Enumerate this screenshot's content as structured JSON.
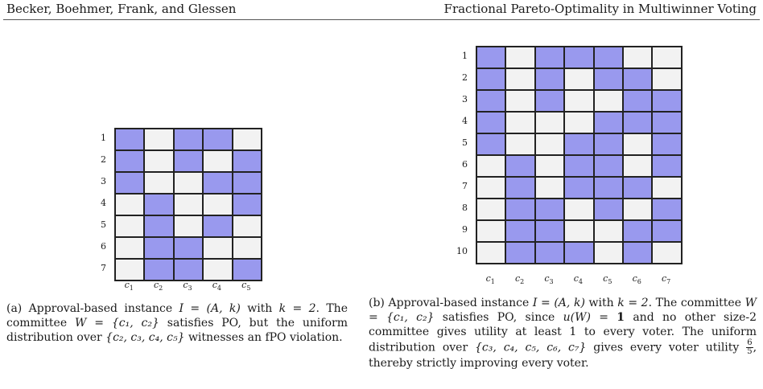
{
  "header": {
    "left": "Becker, Boehmer, Frank, and Glessen",
    "right": "Fractional Pareto-Optimality in Multiwinner Voting"
  },
  "figure_a": {
    "rows": [
      "1",
      "2",
      "3",
      "4",
      "5",
      "6",
      "7"
    ],
    "cols": [
      "c1",
      "c2",
      "c3",
      "c4",
      "c5"
    ],
    "matrix": [
      [
        1,
        0,
        1,
        1,
        0
      ],
      [
        1,
        0,
        1,
        0,
        1
      ],
      [
        1,
        0,
        0,
        1,
        1
      ],
      [
        0,
        1,
        0,
        0,
        1
      ],
      [
        0,
        1,
        0,
        1,
        0
      ],
      [
        0,
        1,
        1,
        0,
        0
      ],
      [
        0,
        1,
        1,
        0,
        1
      ]
    ],
    "caption": {
      "p1": "(a) Approval-based instance ",
      "m1": "I = (A, k)",
      "p2": " with ",
      "m2": "k = 2",
      "p3": ". The committee ",
      "m3": "W = {c₁, c₂}",
      "p4": " satisfies PO, but the uniform distribution over ",
      "m4": "{c₂, c₃, c₄, c₅}",
      "p5": " witnesses an fPO violation."
    }
  },
  "figure_b": {
    "rows": [
      "1",
      "2",
      "3",
      "4",
      "5",
      "6",
      "7",
      "8",
      "9",
      "10"
    ],
    "cols": [
      "c1",
      "c2",
      "c3",
      "c4",
      "c5",
      "c6",
      "c7"
    ],
    "matrix": [
      [
        1,
        0,
        1,
        1,
        1,
        0,
        0
      ],
      [
        1,
        0,
        1,
        0,
        1,
        1,
        0
      ],
      [
        1,
        0,
        1,
        0,
        0,
        1,
        1
      ],
      [
        1,
        0,
        0,
        0,
        1,
        1,
        1
      ],
      [
        1,
        0,
        0,
        1,
        1,
        0,
        1
      ],
      [
        0,
        1,
        0,
        1,
        1,
        0,
        1
      ],
      [
        0,
        1,
        0,
        1,
        1,
        1,
        0
      ],
      [
        0,
        1,
        1,
        0,
        1,
        0,
        1
      ],
      [
        0,
        1,
        1,
        0,
        0,
        1,
        1
      ],
      [
        0,
        1,
        1,
        1,
        0,
        1,
        0
      ]
    ],
    "caption": {
      "p1": "(b) Approval-based instance ",
      "m1": "I = (A, k)",
      "p2": " with ",
      "m2": "k = 2",
      "p3": ". The committee ",
      "m3": "W = {c₁, c₂}",
      "p4": " satisfies PO, since ",
      "m4": "u(W) = ",
      "m4b": "1",
      "p5": " and no other size-2 committee gives utility at least 1 to every voter. The uniform distribution over ",
      "m5": "{c₃, c₄, c₅, c₆, c₇}",
      "p6": " gives every voter utility ",
      "frac_num": "6",
      "frac_den": "5",
      "p7": ", thereby strictly improving every voter."
    }
  }
}
